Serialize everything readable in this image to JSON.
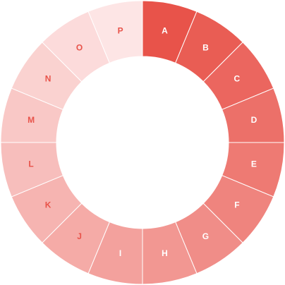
{
  "chart_data": {
    "type": "donut",
    "categories": [
      "A",
      "B",
      "C",
      "D",
      "E",
      "F",
      "G",
      "H",
      "I",
      "J",
      "K",
      "L",
      "M",
      "N",
      "O",
      "P"
    ],
    "values": [
      1,
      1,
      1,
      1,
      1,
      1,
      1,
      1,
      1,
      1,
      1,
      1,
      1,
      1,
      1,
      1
    ],
    "colors": [
      "#e8534a",
      "#e95d54",
      "#eb665f",
      "#ec7069",
      "#ee7a73",
      "#ef847e",
      "#f08d88",
      "#f29792",
      "#f3a19d",
      "#f5aba7",
      "#f6b4b1",
      "#f7bebc",
      "#f9c8c6",
      "#fad2d0",
      "#fcdbdb",
      "#fde5e5"
    ]
  }
}
